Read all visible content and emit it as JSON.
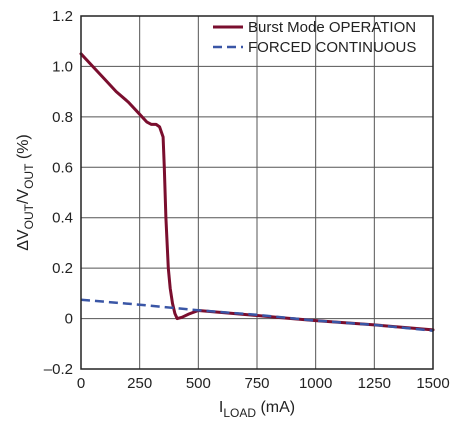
{
  "chart_data": {
    "type": "line",
    "title": "",
    "xlabel": {
      "main": "I",
      "sub": "LOAD",
      "unit": " (mA)"
    },
    "ylabel": {
      "delta": "ΔV",
      "sub1": "OUT",
      "slash": "/V",
      "sub2": "OUT",
      "unit": " (%)"
    },
    "xlim": [
      0,
      1500
    ],
    "ylim": [
      -0.2,
      1.2
    ],
    "x_ticks": [
      0,
      250,
      500,
      750,
      1000,
      1250,
      1500
    ],
    "x_tick_labels": [
      "0",
      "250",
      "500",
      "750",
      "1000",
      "1250",
      "1500"
    ],
    "y_ticks": [
      -0.2,
      0,
      0.2,
      0.4,
      0.6,
      0.8,
      1.0,
      1.2
    ],
    "y_tick_labels": [
      "–0.2",
      "0",
      "0.2",
      "0.4",
      "0.6",
      "0.8",
      "1.0",
      "1.2"
    ],
    "grid": true,
    "legend_position": "top-right",
    "series": [
      {
        "name": "Burst Mode OPERATION",
        "color": "#7a0e2e",
        "style": "solid",
        "points": [
          [
            0,
            1.05
          ],
          [
            50,
            1.0
          ],
          [
            100,
            0.95
          ],
          [
            150,
            0.9
          ],
          [
            200,
            0.86
          ],
          [
            250,
            0.81
          ],
          [
            280,
            0.78
          ],
          [
            300,
            0.77
          ],
          [
            320,
            0.77
          ],
          [
            335,
            0.76
          ],
          [
            350,
            0.72
          ],
          [
            355,
            0.6
          ],
          [
            362,
            0.4
          ],
          [
            372,
            0.2
          ],
          [
            380,
            0.12
          ],
          [
            390,
            0.06
          ],
          [
            400,
            0.02
          ],
          [
            410,
            0.0
          ],
          [
            430,
            0.005
          ],
          [
            460,
            0.018
          ],
          [
            500,
            0.032
          ],
          [
            550,
            0.028
          ],
          [
            650,
            0.02
          ],
          [
            750,
            0.012
          ],
          [
            850,
            0.004
          ],
          [
            1000,
            -0.008
          ],
          [
            1250,
            -0.025
          ],
          [
            1500,
            -0.045
          ]
        ]
      },
      {
        "name": "FORCED CONTINUOUS",
        "color": "#3a56a6",
        "style": "dashed",
        "points": [
          [
            0,
            0.075
          ],
          [
            250,
            0.055
          ],
          [
            500,
            0.033
          ],
          [
            750,
            0.015
          ],
          [
            1000,
            -0.008
          ],
          [
            1250,
            -0.025
          ],
          [
            1500,
            -0.048
          ]
        ]
      }
    ]
  }
}
